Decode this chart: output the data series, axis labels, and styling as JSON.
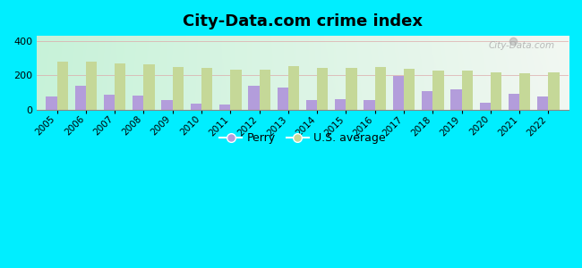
{
  "title": "City-Data.com crime index",
  "years": [
    2005,
    2006,
    2007,
    2008,
    2009,
    2010,
    2011,
    2012,
    2013,
    2014,
    2015,
    2016,
    2017,
    2018,
    2019,
    2020,
    2021,
    2022
  ],
  "perry": [
    75,
    140,
    85,
    80,
    55,
    35,
    30,
    140,
    130,
    55,
    60,
    58,
    198,
    105,
    120,
    38,
    90,
    78
  ],
  "us_avg": [
    278,
    278,
    268,
    263,
    248,
    242,
    235,
    232,
    252,
    242,
    242,
    248,
    238,
    230,
    225,
    218,
    213,
    215
  ],
  "perry_color": "#b39ddb",
  "us_avg_color": "#c5d898",
  "fig_bg": "#00eeff",
  "ylim": [
    0,
    430
  ],
  "yticks": [
    0,
    200,
    400
  ],
  "bar_width": 0.38,
  "legend_perry": "Perry",
  "legend_us": "U.S. average",
  "watermark": "City-Data.com"
}
